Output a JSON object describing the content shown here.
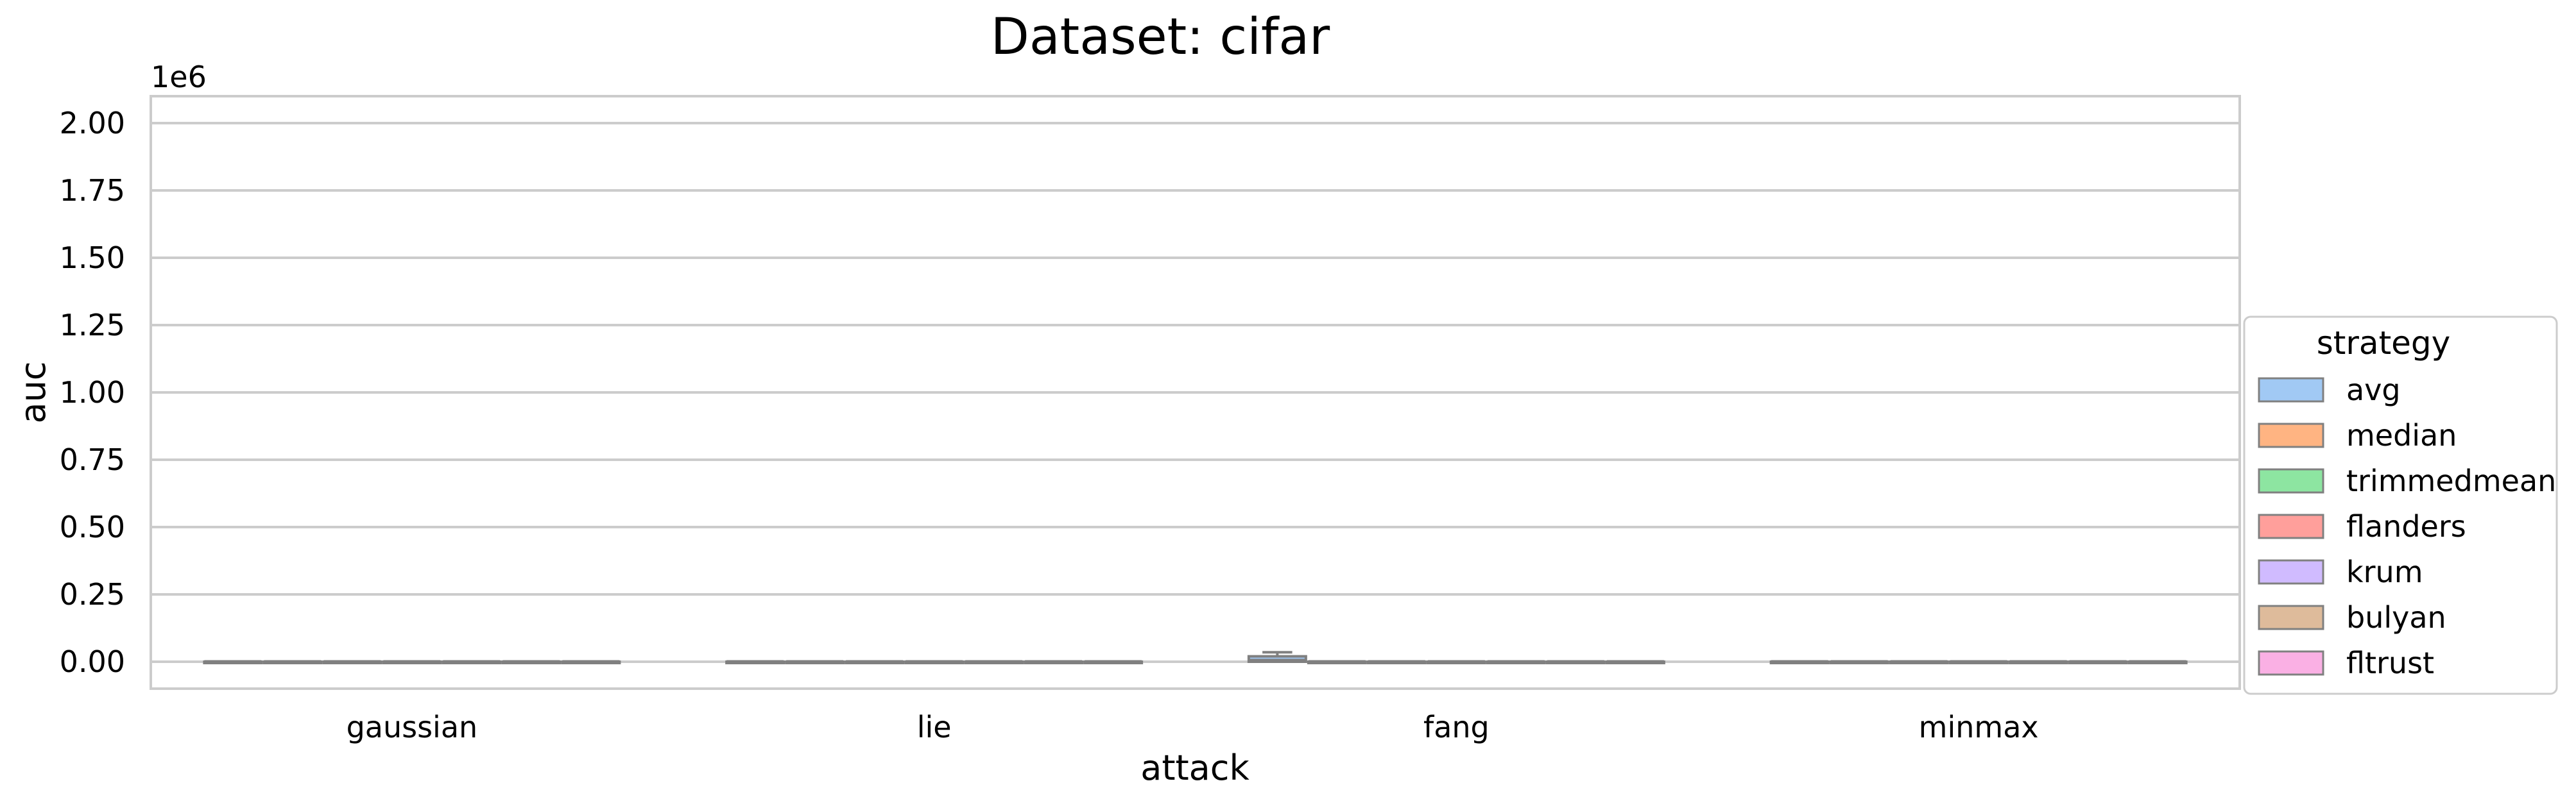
{
  "chart_data": {
    "type": "box",
    "title": "Dataset: cifar",
    "xlabel": "attack",
    "ylabel": "auc",
    "y_offset_label": "1e6",
    "ylim": [
      -100000,
      2100000
    ],
    "yticks": [
      0,
      250000,
      500000,
      750000,
      1000000,
      1250000,
      1500000,
      1750000,
      2000000
    ],
    "ytick_labels": [
      "0.00",
      "0.25",
      "0.50",
      "0.75",
      "1.00",
      "1.25",
      "1.50",
      "1.75",
      "2.00"
    ],
    "grid": "horizontal",
    "categories": [
      "gaussian",
      "lie",
      "fang",
      "minmax"
    ],
    "legend": {
      "title": "strategy",
      "position": "right"
    },
    "series": [
      {
        "name": "avg",
        "color": "#a1c9f4",
        "boxes": [
          {
            "q1": 0,
            "q3": 0,
            "median": 0,
            "whislo": 0,
            "whishi": 0
          },
          {
            "q1": 0,
            "q3": 0,
            "median": 0,
            "whislo": 0,
            "whishi": 0
          },
          {
            "q1": 0,
            "q3": 20000,
            "median": 5000,
            "whislo": 0,
            "whishi": 35000
          },
          {
            "q1": 0,
            "q3": 0,
            "median": 0,
            "whislo": 0,
            "whishi": 0
          }
        ]
      },
      {
        "name": "median",
        "color": "#ffb482",
        "boxes": [
          {
            "q1": 0,
            "q3": 0,
            "median": 0,
            "whislo": 0,
            "whishi": 0
          },
          {
            "q1": 0,
            "q3": 0,
            "median": 0,
            "whislo": 0,
            "whishi": 0
          },
          {
            "q1": 0,
            "q3": 0,
            "median": 0,
            "whislo": 0,
            "whishi": 0
          },
          {
            "q1": 0,
            "q3": 0,
            "median": 0,
            "whislo": 0,
            "whishi": 0
          }
        ]
      },
      {
        "name": "trimmedmean",
        "color": "#8de5a1",
        "boxes": [
          {
            "q1": 0,
            "q3": 0,
            "median": 0,
            "whislo": 0,
            "whishi": 0
          },
          {
            "q1": 0,
            "q3": 0,
            "median": 0,
            "whislo": 0,
            "whishi": 0
          },
          {
            "q1": 0,
            "q3": 0,
            "median": 0,
            "whislo": 0,
            "whishi": 0
          },
          {
            "q1": 0,
            "q3": 0,
            "median": 0,
            "whislo": 0,
            "whishi": 0
          }
        ]
      },
      {
        "name": "flanders",
        "color": "#ff9f9b",
        "boxes": [
          {
            "q1": 0,
            "q3": 0,
            "median": 0,
            "whislo": 0,
            "whishi": 0
          },
          {
            "q1": 0,
            "q3": 0,
            "median": 0,
            "whislo": 0,
            "whishi": 0
          },
          {
            "q1": 0,
            "q3": 0,
            "median": 0,
            "whislo": 0,
            "whishi": 0
          },
          {
            "q1": 0,
            "q3": 0,
            "median": 0,
            "whislo": 0,
            "whishi": 0
          }
        ]
      },
      {
        "name": "krum",
        "color": "#d0bbff",
        "boxes": [
          {
            "q1": 0,
            "q3": 0,
            "median": 0,
            "whislo": 0,
            "whishi": 0
          },
          {
            "q1": 0,
            "q3": 0,
            "median": 0,
            "whislo": 0,
            "whishi": 0
          },
          {
            "q1": 0,
            "q3": 0,
            "median": 0,
            "whislo": 0,
            "whishi": 0
          },
          {
            "q1": 0,
            "q3": 0,
            "median": 0,
            "whislo": 0,
            "whishi": 0
          }
        ]
      },
      {
        "name": "bulyan",
        "color": "#debb9b",
        "boxes": [
          {
            "q1": 0,
            "q3": 0,
            "median": 0,
            "whislo": 0,
            "whishi": 0
          },
          {
            "q1": 0,
            "q3": 0,
            "median": 0,
            "whislo": 0,
            "whishi": 0
          },
          {
            "q1": 0,
            "q3": 0,
            "median": 0,
            "whislo": 0,
            "whishi": 0
          },
          {
            "q1": 0,
            "q3": 0,
            "median": 0,
            "whislo": 0,
            "whishi": 0
          }
        ]
      },
      {
        "name": "fltrust",
        "color": "#fab0e4",
        "boxes": [
          {
            "q1": 0,
            "q3": 0,
            "median": 0,
            "whislo": 0,
            "whishi": 0
          },
          {
            "q1": 0,
            "q3": 0,
            "median": 0,
            "whislo": 0,
            "whishi": 0
          },
          {
            "q1": 0,
            "q3": 0,
            "median": 0,
            "whislo": 0,
            "whishi": 0
          },
          {
            "q1": 0,
            "q3": 0,
            "median": 0,
            "whislo": 0,
            "whishi": 0
          }
        ]
      }
    ]
  }
}
